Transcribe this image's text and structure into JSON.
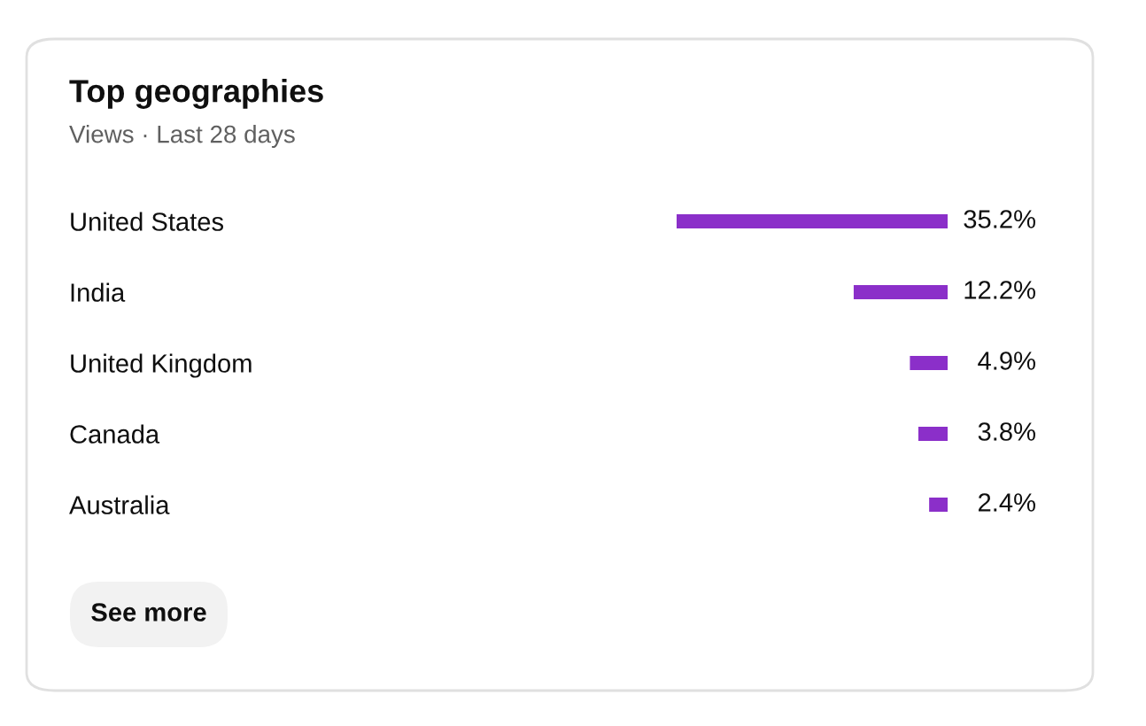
{
  "chart_data": {
    "type": "bar",
    "orientation": "horizontal",
    "title": "Top geographies",
    "subtitle": "Views · Last 28 days",
    "categories": [
      "United States",
      "India",
      "United Kingdom",
      "Canada",
      "Australia"
    ],
    "values": [
      35.2,
      12.2,
      4.9,
      3.8,
      2.4
    ],
    "value_labels": [
      "35.2%",
      "12.2%",
      "4.9%",
      "3.8%",
      "2.4%"
    ],
    "color": "#8b2fc9",
    "xlim": [
      35.2,
      0
    ],
    "tick_labels": "y",
    "grid": false,
    "legend": false,
    "annotations": [
      "See more"
    ]
  }
}
